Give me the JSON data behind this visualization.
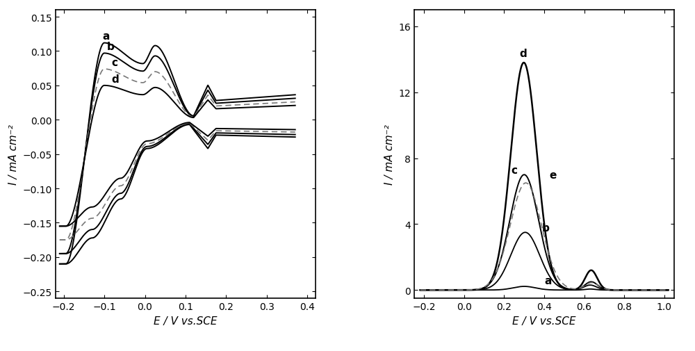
{
  "left_plot": {
    "xlim": [
      -0.22,
      0.42
    ],
    "ylim": [
      -0.26,
      0.16
    ],
    "xticks": [
      -0.2,
      -0.1,
      0.0,
      0.1,
      0.2,
      0.3,
      0.4
    ],
    "yticks": [
      -0.25,
      -0.2,
      -0.15,
      -0.1,
      -0.05,
      0.0,
      0.05,
      0.1,
      0.15
    ],
    "xlabel": "E / V vs.SCE",
    "ylabel": "I / mA cm⁻²"
  },
  "right_plot": {
    "xlim": [
      -0.25,
      1.05
    ],
    "ylim": [
      -0.5,
      17.0
    ],
    "xticks": [
      -0.2,
      0.0,
      0.2,
      0.4,
      0.6,
      0.8,
      1.0
    ],
    "yticks": [
      0,
      4,
      8,
      12,
      16
    ],
    "xlabel": "E / V vs.SCE",
    "ylabel": "I / mA cm⁻²"
  },
  "bg_color": "#ffffff",
  "fontsize_label": 11,
  "fontsize_tick": 10,
  "fontsize_annotation": 11
}
